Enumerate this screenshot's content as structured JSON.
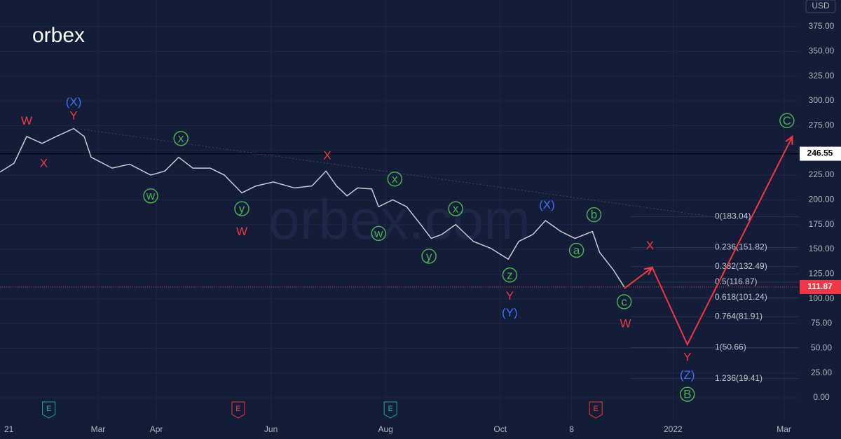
{
  "brand": "orbex",
  "watermark": "orbex.com",
  "currency": "USD",
  "chart_data": {
    "type": "line",
    "xlim": [
      6.8,
      432
    ],
    "ylim": [
      -22.6,
      401.9
    ],
    "xticks": [
      {
        "value": 0,
        "label": "21"
      },
      {
        "value": 59,
        "label": "Mar"
      },
      {
        "value": 90,
        "label": "Apr"
      },
      {
        "value": 151,
        "label": "Jun"
      },
      {
        "value": 212,
        "label": "Aug"
      },
      {
        "value": 273,
        "label": "Oct"
      },
      {
        "value": 311,
        "label": "8"
      },
      {
        "value": 365,
        "label": "2022"
      },
      {
        "value": 424,
        "label": "Mar"
      }
    ],
    "yticks": [
      {
        "value": 0,
        "label": "0.00"
      },
      {
        "value": 25,
        "label": "25.00"
      },
      {
        "value": 50,
        "label": "50.00"
      },
      {
        "value": 75,
        "label": "75.00"
      },
      {
        "value": 100,
        "label": "100.00"
      },
      {
        "value": 125,
        "label": "125.00"
      },
      {
        "value": 150,
        "label": "150.00"
      },
      {
        "value": 175,
        "label": "175.00"
      },
      {
        "value": 200,
        "label": "200.00"
      },
      {
        "value": 225,
        "label": "225.00"
      },
      {
        "value": 250,
        "label": "250.00"
      },
      {
        "value": 275,
        "label": "275.00"
      },
      {
        "value": 300,
        "label": "300.00"
      },
      {
        "value": 325,
        "label": "325.00"
      },
      {
        "value": 350,
        "label": "350.00"
      },
      {
        "value": 375,
        "label": "375.00"
      }
    ],
    "grid": true,
    "series": [
      {
        "color": "#c8ccd6",
        "x": [
          6.8,
          14.3,
          21,
          29.2,
          36.7,
          46,
          51.6,
          55.3,
          66.5,
          75.8,
          87,
          94.5,
          101.9,
          109.4,
          118.7,
          126.2,
          135.5,
          143,
          152.3,
          163.5,
          172.8,
          180.3,
          185.9,
          191.5,
          197.1,
          204.6,
          208.3,
          215.8,
          223.2,
          230.7,
          236.3,
          241.9,
          249.3,
          258.7,
          268,
          277.3,
          282.9,
          290.4,
          297.1,
          305.3,
          312.8,
          322.1,
          325.9,
          333.3,
          339
        ],
        "values": [
          228,
          237,
          264,
          257,
          264,
          272,
          264,
          243,
          232,
          236,
          225,
          229,
          243,
          232,
          232,
          225,
          207,
          214,
          218,
          212,
          214,
          229,
          214,
          204,
          212,
          211,
          193,
          200,
          193,
          175,
          161,
          165,
          175,
          158,
          151,
          140,
          158,
          165,
          179,
          168,
          161,
          168,
          147,
          129,
          112
        ]
      },
      {
        "color": "#f23645",
        "x": [
          339,
          353.9,
          372.6,
          428.5
        ],
        "values": [
          110.4,
          131.6,
          53.8,
          264
        ]
      }
    ],
    "price_lines": [
      {
        "value": 246.55,
        "color": "#000000"
      },
      {
        "value": 111.87,
        "color": "#f23645"
      }
    ],
    "fib_levels": [
      {
        "value": 183.04,
        "label": "0(183.04)"
      },
      {
        "value": 151.82,
        "label": "0.236(151.82)"
      },
      {
        "value": 132.49,
        "label": "0.382(132.49)"
      },
      {
        "value": 116.87,
        "label": "0.5(116.87)"
      },
      {
        "value": 101.24,
        "label": "0.618(101.24)"
      },
      {
        "value": 81.91,
        "label": "0.764(81.91)"
      },
      {
        "value": 50.66,
        "label": "1(50.66)"
      },
      {
        "value": 19.41,
        "label": "1.236(19.41)"
      }
    ],
    "annotations": [
      {
        "text": "W",
        "x": 21,
        "y": 280,
        "color": "#f23645"
      },
      {
        "text": "(X)",
        "x": 46,
        "y": 299,
        "color": "#3d6ef5"
      },
      {
        "text": "Y",
        "x": 46,
        "y": 285,
        "color": "#f23645"
      },
      {
        "text": "X",
        "x": 30.1,
        "y": 237,
        "color": "#f23645"
      },
      {
        "text": "x",
        "x": 103.1,
        "y": 262,
        "color": "#4caf50",
        "circled": true
      },
      {
        "text": "w",
        "x": 87,
        "y": 204,
        "color": "#4caf50",
        "circled": true
      },
      {
        "text": "X",
        "x": 181,
        "y": 245,
        "color": "#f23645"
      },
      {
        "text": "y",
        "x": 135.5,
        "y": 191,
        "color": "#4caf50",
        "circled": true
      },
      {
        "text": "W",
        "x": 135.5,
        "y": 168,
        "color": "#f23645"
      },
      {
        "text": "x",
        "x": 216.9,
        "y": 221,
        "color": "#4caf50",
        "circled": true
      },
      {
        "text": "w",
        "x": 208.3,
        "y": 166,
        "color": "#4caf50",
        "circled": true
      },
      {
        "text": "x",
        "x": 249.3,
        "y": 191,
        "color": "#4caf50",
        "circled": true
      },
      {
        "text": "y",
        "x": 235.1,
        "y": 143,
        "color": "#4caf50",
        "circled": true
      },
      {
        "text": "z",
        "x": 278.1,
        "y": 124,
        "color": "#4caf50",
        "circled": true
      },
      {
        "text": "Y",
        "x": 278.1,
        "y": 103,
        "color": "#f23645"
      },
      {
        "text": "(Y)",
        "x": 278.1,
        "y": 86,
        "color": "#3d6ef5"
      },
      {
        "text": "(X)",
        "x": 297.9,
        "y": 195,
        "color": "#3d6ef5"
      },
      {
        "text": "b",
        "x": 322.9,
        "y": 185,
        "color": "#4caf50",
        "circled": true
      },
      {
        "text": "a",
        "x": 313.6,
        "y": 149,
        "color": "#4caf50",
        "circled": true
      },
      {
        "text": "c",
        "x": 339,
        "y": 97,
        "color": "#4caf50",
        "circled": true
      },
      {
        "text": "W",
        "x": 339.7,
        "y": 75,
        "color": "#f23645"
      },
      {
        "text": "X",
        "x": 352.7,
        "y": 154,
        "color": "#f23645"
      },
      {
        "text": "Y",
        "x": 372.6,
        "y": 41,
        "color": "#f23645"
      },
      {
        "text": "(Z)",
        "x": 372.6,
        "y": 23,
        "color": "#3d6ef5"
      },
      {
        "text": "B",
        "x": 372.6,
        "y": 3.5,
        "color": "#4caf50",
        "circled": true
      },
      {
        "text": "C",
        "x": 425.6,
        "y": 280,
        "color": "#4caf50",
        "circled": true
      }
    ],
    "events": [
      {
        "x": 32.8,
        "label": "E",
        "color": "#26a69a"
      },
      {
        "x": 133.6,
        "label": "E",
        "color": "#f23645"
      },
      {
        "x": 214.6,
        "label": "E",
        "color": "#26a69a"
      },
      {
        "x": 323.9,
        "label": "E",
        "color": "#f23645"
      }
    ]
  }
}
